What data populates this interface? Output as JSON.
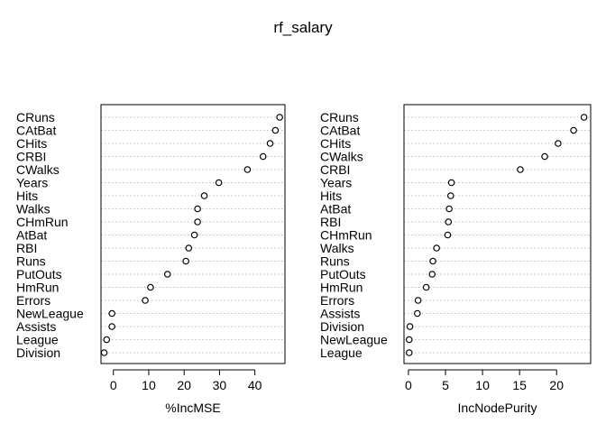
{
  "figure": {
    "title": "rf_salary"
  },
  "chart_data": [
    {
      "type": "scatter",
      "style": "dotchart",
      "xlabel": "%IncMSE",
      "xticks": [
        0,
        10,
        20,
        30,
        40
      ],
      "xlim": [
        -3.5,
        48.5
      ],
      "grid": "dotted horizontal guide per variable",
      "categories": [
        "CRuns",
        "CAtBat",
        "CHits",
        "CRBI",
        "CWalks",
        "Years",
        "Hits",
        "Walks",
        "CHmRun",
        "AtBat",
        "RBI",
        "Runs",
        "PutOuts",
        "HmRun",
        "Errors",
        "NewLeague",
        "Assists",
        "League",
        "Division"
      ],
      "values": [
        47.0,
        45.8,
        44.3,
        42.3,
        37.9,
        29.8,
        25.7,
        23.8,
        23.8,
        22.9,
        21.3,
        20.5,
        15.3,
        10.5,
        9.0,
        -0.4,
        -0.4,
        -1.9,
        -2.6
      ]
    },
    {
      "type": "scatter",
      "style": "dotchart",
      "xlabel": "IncNodePurity",
      "xticks": [
        0,
        5,
        10,
        15,
        20
      ],
      "xlim": [
        -0.6,
        24.6
      ],
      "grid": "dotted horizontal guide per variable",
      "categories": [
        "CRuns",
        "CAtBat",
        "CHits",
        "CWalks",
        "CRBI",
        "Years",
        "Hits",
        "AtBat",
        "RBI",
        "CHmRun",
        "Walks",
        "Runs",
        "PutOuts",
        "HmRun",
        "Errors",
        "Assists",
        "Division",
        "NewLeague",
        "League"
      ],
      "values": [
        23.7,
        22.3,
        20.2,
        18.4,
        15.1,
        5.8,
        5.7,
        5.5,
        5.4,
        5.3,
        3.8,
        3.3,
        3.2,
        2.4,
        1.3,
        1.2,
        0.2,
        0.1,
        0.1
      ]
    }
  ]
}
